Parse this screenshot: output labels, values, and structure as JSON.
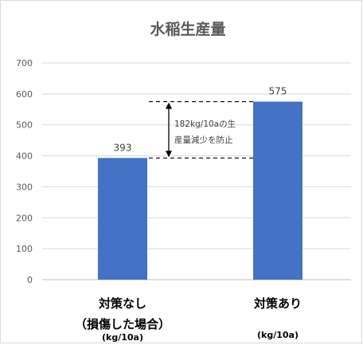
{
  "chart_data": {
    "type": "bar",
    "title": "水稲生産量",
    "categories": [
      "対策なし（損傷した場合）",
      "対策あり"
    ],
    "category_lines": [
      [
        "対策なし",
        "（損傷した場合）"
      ],
      [
        "対策あり"
      ]
    ],
    "unit_label": "(kg/10a)",
    "values": [
      393,
      575
    ],
    "ylim": [
      0,
      700
    ],
    "yticks": [
      0,
      100,
      200,
      300,
      400,
      500,
      600,
      700
    ],
    "grid": true,
    "bar_color": "#4472c4",
    "annotation": {
      "lines": [
        "182kg/10aの生",
        "産量減少を防止"
      ],
      "from_value": 393,
      "to_value": 575
    }
  }
}
